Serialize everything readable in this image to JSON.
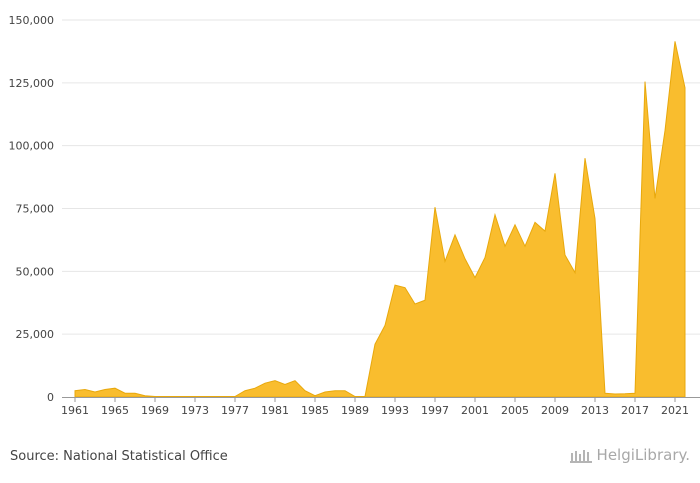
{
  "chart_data": {
    "type": "area",
    "color": "#F9BD2E",
    "edge_color": "#E8A80C",
    "grid": true,
    "ylim": [
      0,
      150000
    ],
    "y_ticks": [
      "0",
      "25,000",
      "50,000",
      "75,000",
      "100,000",
      "125,000",
      "150,000"
    ],
    "x_ticks": [
      "1961",
      "1965",
      "1969",
      "1973",
      "1977",
      "1981",
      "1985",
      "1989",
      "1993",
      "1997",
      "2001",
      "2005",
      "2009",
      "2013",
      "2017",
      "2021"
    ],
    "series": [
      {
        "x": [
          1961,
          1962,
          1963,
          1964,
          1965,
          1966,
          1967,
          1968,
          1969,
          1970,
          1971,
          1972,
          1973,
          1974,
          1975,
          1976,
          1977,
          1978,
          1979,
          1980,
          1981,
          1982,
          1983,
          1984,
          1985,
          1986,
          1987,
          1988,
          1989,
          1990,
          1991,
          1992,
          1993,
          1994,
          1995,
          1996,
          1997,
          1998,
          1999,
          2000,
          2001,
          2002,
          2003,
          2004,
          2005,
          2006,
          2007,
          2008,
          2009,
          2010,
          2011,
          2012,
          2013,
          2014,
          2015,
          2016,
          2017,
          2018,
          2019,
          2020,
          2021,
          2022
        ],
        "values": [
          2500,
          3000,
          2000,
          3000,
          3500,
          1500,
          1500,
          500,
          200,
          200,
          200,
          200,
          200,
          200,
          200,
          200,
          200,
          2500,
          3500,
          5500,
          6500,
          5000,
          6500,
          2500,
          500,
          2000,
          2500,
          2500,
          200,
          200,
          21000,
          28500,
          44500,
          43500,
          37000,
          38500,
          75500,
          54000,
          64500,
          55000,
          47500,
          55500,
          72500,
          60000,
          68500,
          60000,
          69500,
          66000,
          89000,
          56500,
          49500,
          95000,
          71000,
          1500,
          1200,
          1300,
          1500,
          125500,
          79000,
          106000,
          141500,
          123000
        ]
      }
    ]
  },
  "footer": {
    "source": "Source: National Statistical Office",
    "brand": "HelgiLibrary."
  }
}
